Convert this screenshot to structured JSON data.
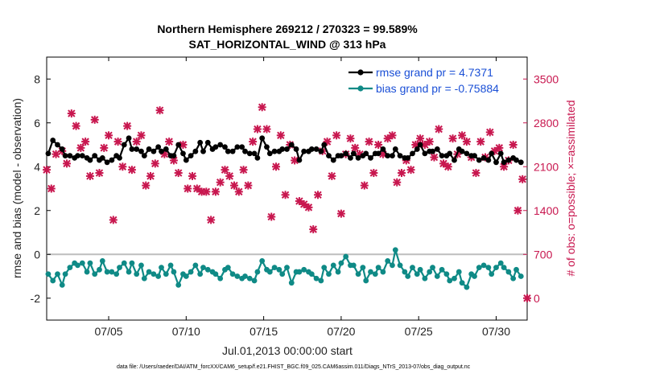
{
  "chart_data": {
    "type": "line",
    "title": "Northern Hemisphere 269212 / 270323 = 99.589%",
    "subtitle": "SAT_HORIZONTAL_WIND @ 313 hPa",
    "xlabel": "Jul.01,2013 00:00:00 start",
    "ylabel": "rmse and bias (model - observation)",
    "ylabel_right": "# of obs: o=possible; ×=assimilated",
    "footer": "data file: /Users/raeder/DAI/ATM_forcXX/CAM6_setup/f.e21.FHIST_BGC.f09_025.CAM6assim.011/Diags_NTrS_2013-07/obs_diag_output.nc",
    "xlim": [
      1.0,
      32.0
    ],
    "ylim": [
      -3,
      9
    ],
    "ylim_right": [
      -350,
      3850
    ],
    "x_ticks": [
      {
        "value": 5,
        "label": "07/05"
      },
      {
        "value": 10,
        "label": "07/10"
      },
      {
        "value": 15,
        "label": "07/15"
      },
      {
        "value": 20,
        "label": "07/20"
      },
      {
        "value": 25,
        "label": "07/25"
      },
      {
        "value": 30,
        "label": "07/30"
      }
    ],
    "y_ticks": [
      {
        "value": -2,
        "label": "-2"
      },
      {
        "value": 0,
        "label": "0"
      },
      {
        "value": 2,
        "label": "2"
      },
      {
        "value": 4,
        "label": "4"
      },
      {
        "value": 6,
        "label": "6"
      },
      {
        "value": 8,
        "label": "8"
      }
    ],
    "y_ticks_right": [
      {
        "value": 0,
        "label": "0"
      },
      {
        "value": 700,
        "label": "700"
      },
      {
        "value": 1400,
        "label": "1400"
      },
      {
        "value": 2100,
        "label": "2100"
      },
      {
        "value": 2800,
        "label": "2800"
      },
      {
        "value": 3500,
        "label": "3500"
      }
    ],
    "zero_line": 0,
    "legend_position": "top-right",
    "series": [
      {
        "name": "rmse grand pr = 4.7371",
        "color": "#000000",
        "marker": "o",
        "x": [
          1.1,
          1.4,
          1.7,
          2.0,
          2.2,
          2.5,
          2.8,
          3.0,
          3.3,
          3.6,
          3.8,
          4.1,
          4.4,
          4.6,
          4.9,
          5.2,
          5.5,
          5.7,
          6.0,
          6.3,
          6.5,
          6.8,
          7.1,
          7.3,
          7.6,
          7.9,
          8.2,
          8.4,
          8.7,
          9.0,
          9.2,
          9.5,
          9.8,
          10.0,
          10.3,
          10.6,
          10.9,
          11.1,
          11.4,
          11.7,
          11.9,
          12.2,
          12.5,
          12.7,
          13.0,
          13.3,
          13.6,
          13.8,
          14.1,
          14.4,
          14.6,
          14.9,
          15.2,
          15.4,
          15.7,
          16.0,
          16.2,
          16.5,
          16.8,
          17.1,
          17.3,
          17.6,
          17.9,
          18.1,
          18.4,
          18.7,
          18.9,
          19.2,
          19.5,
          19.8,
          20.0,
          20.3,
          20.6,
          20.8,
          21.1,
          21.4,
          21.6,
          21.9,
          22.2,
          22.4,
          22.7,
          23.0,
          23.3,
          23.5,
          23.8,
          24.1,
          24.3,
          24.6,
          24.9,
          25.1,
          25.4,
          25.7,
          25.9,
          26.2,
          26.5,
          26.8,
          27.0,
          27.3,
          27.6,
          27.8,
          28.1,
          28.4,
          28.6,
          28.9,
          29.2,
          29.5,
          29.7,
          30.0,
          30.3,
          30.5,
          30.8,
          31.1,
          31.3,
          31.6
        ],
        "values": [
          4.6,
          5.2,
          5.0,
          4.8,
          4.5,
          4.5,
          4.4,
          4.5,
          4.5,
          4.4,
          4.3,
          4.5,
          4.3,
          4.4,
          4.2,
          4.3,
          4.5,
          4.4,
          5.0,
          5.3,
          4.8,
          4.8,
          4.7,
          4.5,
          4.8,
          4.7,
          4.9,
          4.7,
          4.8,
          4.5,
          4.5,
          5.0,
          4.6,
          4.3,
          4.5,
          4.7,
          5.1,
          4.7,
          5.1,
          4.8,
          4.9,
          5.0,
          4.9,
          4.7,
          4.7,
          4.9,
          4.9,
          4.7,
          4.6,
          4.6,
          4.4,
          5.3,
          4.9,
          4.6,
          4.7,
          4.7,
          4.8,
          4.8,
          5.0,
          4.8,
          4.3,
          4.7,
          4.7,
          4.8,
          4.8,
          4.7,
          5.0,
          4.5,
          4.3,
          4.5,
          4.5,
          4.6,
          4.4,
          4.6,
          4.4,
          4.5,
          4.6,
          4.4,
          4.6,
          4.6,
          4.8,
          4.5,
          4.5,
          4.8,
          4.5,
          4.4,
          4.4,
          4.6,
          4.8,
          5.0,
          4.6,
          4.7,
          4.7,
          4.8,
          4.5,
          4.5,
          4.6,
          4.3,
          4.8,
          4.7,
          4.6,
          4.5,
          4.5,
          4.3,
          4.4,
          4.3,
          4.6,
          4.2,
          4.6,
          4.2,
          4.3,
          4.4,
          4.3,
          4.2
        ]
      },
      {
        "name": "bias grand pr = -0.75884",
        "color": "#0f8a86",
        "marker": "o",
        "x": [
          1.1,
          1.4,
          1.7,
          2.0,
          2.2,
          2.5,
          2.8,
          3.0,
          3.3,
          3.6,
          3.8,
          4.1,
          4.4,
          4.6,
          4.9,
          5.2,
          5.5,
          5.7,
          6.0,
          6.3,
          6.5,
          6.8,
          7.1,
          7.3,
          7.6,
          7.9,
          8.2,
          8.4,
          8.7,
          9.0,
          9.2,
          9.5,
          9.8,
          10.0,
          10.3,
          10.6,
          10.9,
          11.1,
          11.4,
          11.7,
          11.9,
          12.2,
          12.5,
          12.7,
          13.0,
          13.3,
          13.6,
          13.8,
          14.1,
          14.4,
          14.6,
          14.9,
          15.2,
          15.4,
          15.7,
          16.0,
          16.2,
          16.5,
          16.8,
          17.1,
          17.3,
          17.6,
          17.9,
          18.1,
          18.4,
          18.7,
          18.9,
          19.2,
          19.5,
          19.8,
          20.0,
          20.3,
          20.6,
          20.8,
          21.1,
          21.4,
          21.6,
          21.9,
          22.2,
          22.4,
          22.7,
          23.0,
          23.3,
          23.5,
          23.8,
          24.1,
          24.3,
          24.6,
          24.9,
          25.1,
          25.4,
          25.7,
          25.9,
          26.2,
          26.5,
          26.8,
          27.0,
          27.3,
          27.6,
          27.8,
          28.1,
          28.4,
          28.6,
          28.9,
          29.2,
          29.5,
          29.7,
          30.0,
          30.3,
          30.5,
          30.8,
          31.1,
          31.3,
          31.6
        ],
        "values": [
          -0.9,
          -1.2,
          -0.9,
          -1.4,
          -0.9,
          -0.6,
          -0.4,
          -0.5,
          -0.4,
          -0.8,
          -0.4,
          -0.9,
          -0.7,
          -0.3,
          -0.8,
          -0.8,
          -0.9,
          -0.6,
          -0.4,
          -0.8,
          -0.4,
          -0.9,
          -0.5,
          -1.1,
          -0.8,
          -0.9,
          -1.0,
          -0.6,
          -0.9,
          -0.5,
          -0.8,
          -1.4,
          -0.9,
          -1.0,
          -0.8,
          -0.5,
          -0.9,
          -0.6,
          -0.7,
          -0.8,
          -0.9,
          -1.1,
          -0.7,
          -0.6,
          -0.9,
          -1.0,
          -1.1,
          -1.0,
          -1.1,
          -1.2,
          -0.8,
          -0.3,
          -0.7,
          -0.8,
          -0.6,
          -0.7,
          -0.9,
          -0.6,
          -1.3,
          -0.8,
          -0.8,
          -0.7,
          -0.8,
          -0.9,
          -1.1,
          -1.2,
          -0.6,
          -0.9,
          -0.5,
          -0.8,
          -0.4,
          -0.1,
          -0.5,
          -0.5,
          -0.9,
          -0.6,
          -1.2,
          -0.8,
          -0.9,
          -0.6,
          -0.8,
          -0.3,
          -0.5,
          0.2,
          -0.5,
          -0.8,
          -1.0,
          -0.6,
          -0.9,
          -0.7,
          -1.1,
          -0.8,
          -0.6,
          -1.0,
          -0.7,
          -0.9,
          -1.2,
          -1.1,
          -0.8,
          -1.3,
          -1.5,
          -0.9,
          -1.0,
          -0.6,
          -0.5,
          -0.6,
          -0.9,
          -0.6,
          -0.4,
          -0.6,
          -0.8,
          -1.1,
          -0.7,
          -1.0
        ]
      }
    ],
    "obs_series": {
      "name": "# of obs assimilated",
      "color": "#c8174f",
      "marker": "x",
      "axis": "right",
      "x": [
        1.0,
        1.3,
        1.6,
        2.0,
        2.3,
        2.6,
        2.9,
        3.2,
        3.5,
        3.8,
        4.1,
        4.4,
        4.7,
        5.0,
        5.3,
        5.6,
        5.9,
        6.2,
        6.5,
        6.8,
        7.1,
        7.4,
        7.7,
        8.0,
        8.3,
        8.6,
        8.9,
        9.2,
        9.5,
        9.8,
        10.1,
        10.4,
        10.7,
        11.0,
        11.3,
        11.6,
        11.9,
        12.2,
        12.5,
        12.8,
        13.1,
        13.4,
        13.7,
        14.0,
        14.3,
        14.6,
        14.9,
        15.2,
        15.5,
        15.8,
        16.1,
        16.4,
        16.7,
        17.0,
        17.3,
        17.6,
        17.9,
        18.2,
        18.5,
        18.8,
        19.1,
        19.4,
        19.7,
        20.0,
        20.3,
        20.6,
        20.9,
        21.2,
        21.5,
        21.8,
        22.1,
        22.4,
        22.7,
        23.0,
        23.3,
        23.6,
        23.9,
        24.2,
        24.5,
        24.8,
        25.1,
        25.4,
        25.7,
        26.0,
        26.3,
        26.6,
        26.9,
        27.2,
        27.5,
        27.8,
        28.1,
        28.4,
        28.7,
        29.0,
        29.3,
        29.6,
        29.9,
        30.2,
        30.5,
        30.8,
        31.1,
        31.4,
        31.7,
        32.0
      ],
      "values": [
        2050,
        1750,
        2300,
        2350,
        2150,
        2950,
        2750,
        2400,
        2500,
        1950,
        2850,
        2000,
        2400,
        2600,
        1250,
        2500,
        2100,
        2750,
        2050,
        2500,
        2600,
        1800,
        1950,
        2150,
        3000,
        2300,
        2500,
        2200,
        2000,
        2450,
        1750,
        1950,
        1750,
        1700,
        1700,
        1250,
        1700,
        1850,
        2050,
        1950,
        1800,
        1700,
        2050,
        1800,
        2500,
        2700,
        3050,
        2700,
        1300,
        2100,
        2600,
        1650,
        2450,
        2200,
        1550,
        1500,
        1450,
        1100,
        1650,
        2350,
        2500,
        1950,
        2600,
        1350,
        2300,
        2550,
        2400,
        2300,
        1800,
        2500,
        2000,
        2450,
        2300,
        2550,
        2600,
        1850,
        2000,
        2200,
        2050,
        2450,
        2550,
        2450,
        2500,
        2250,
        2700,
        2150,
        2100,
        2550,
        2300,
        2600,
        2500,
        2250,
        2000,
        2500,
        2250,
        2650,
        2350,
        2400,
        2100,
        2200,
        2450,
        1400,
        1900,
        0
      ]
    }
  }
}
